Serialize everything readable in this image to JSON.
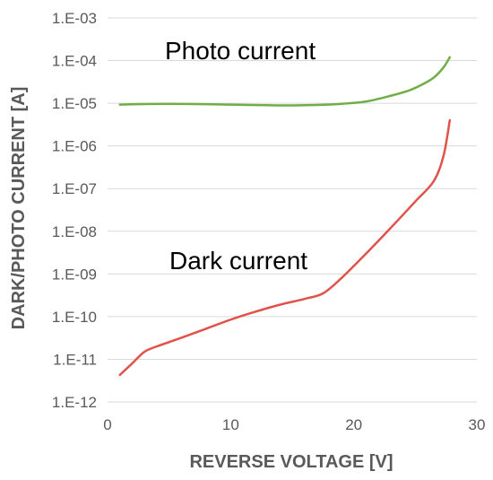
{
  "chart_data": {
    "type": "line",
    "xlabel": "REVERSE VOLTAGE [V]",
    "ylabel": "DARK/PHOTO CURRENT [A]",
    "x_scale": "linear",
    "y_scale": "log",
    "xlim": [
      0,
      30
    ],
    "ylim": [
      1e-12,
      0.001
    ],
    "x_ticks": [
      0,
      10,
      20,
      30
    ],
    "x_tick_labels": [
      "0",
      "10",
      "20",
      "30"
    ],
    "y_ticks": [
      1e-12,
      1e-11,
      1e-10,
      1e-09,
      1e-08,
      1e-07,
      1e-06,
      1e-05,
      0.0001,
      0.001
    ],
    "y_tick_labels": [
      "1.E-12",
      "1.E-11",
      "1.E-10",
      "1.E-09",
      "1.E-08",
      "1.E-07",
      "1.E-06",
      "1.E-05",
      "1.E-04",
      "1.E-03"
    ],
    "grid": "horizontal",
    "legend": "none",
    "annotations": [
      {
        "text": "Photo current",
        "series": "photo"
      },
      {
        "text": "Dark current",
        "series": "dark"
      }
    ],
    "series": [
      {
        "key": "photo",
        "color": "#70ad47",
        "x": [
          1,
          3,
          5,
          8,
          10,
          13,
          15,
          17,
          19,
          21,
          23,
          24.5,
          25.5,
          26.5,
          27.3,
          27.8
        ],
        "y": [
          9.3e-06,
          9.6e-06,
          9.7e-06,
          9.5e-06,
          9.3e-06,
          9e-06,
          8.9e-06,
          9.1e-06,
          9.7e-06,
          1.1e-05,
          1.5e-05,
          2e-05,
          2.7e-05,
          4e-05,
          7e-05,
          0.00012
        ]
      },
      {
        "key": "dark",
        "color": "#e0524a",
        "x": [
          1,
          2,
          3,
          4,
          6,
          8,
          10,
          12,
          14,
          16,
          17.5,
          19,
          21,
          23,
          25,
          26.5,
          27.3,
          27.8
        ],
        "y": [
          4.3e-12,
          8e-12,
          1.5e-11,
          2e-11,
          3.2e-11,
          5.2e-11,
          8.5e-11,
          1.3e-10,
          1.9e-10,
          2.6e-10,
          3.5e-10,
          8e-10,
          3e-09,
          1.2e-08,
          5e-08,
          1.5e-07,
          6e-07,
          4e-06
        ]
      }
    ]
  }
}
